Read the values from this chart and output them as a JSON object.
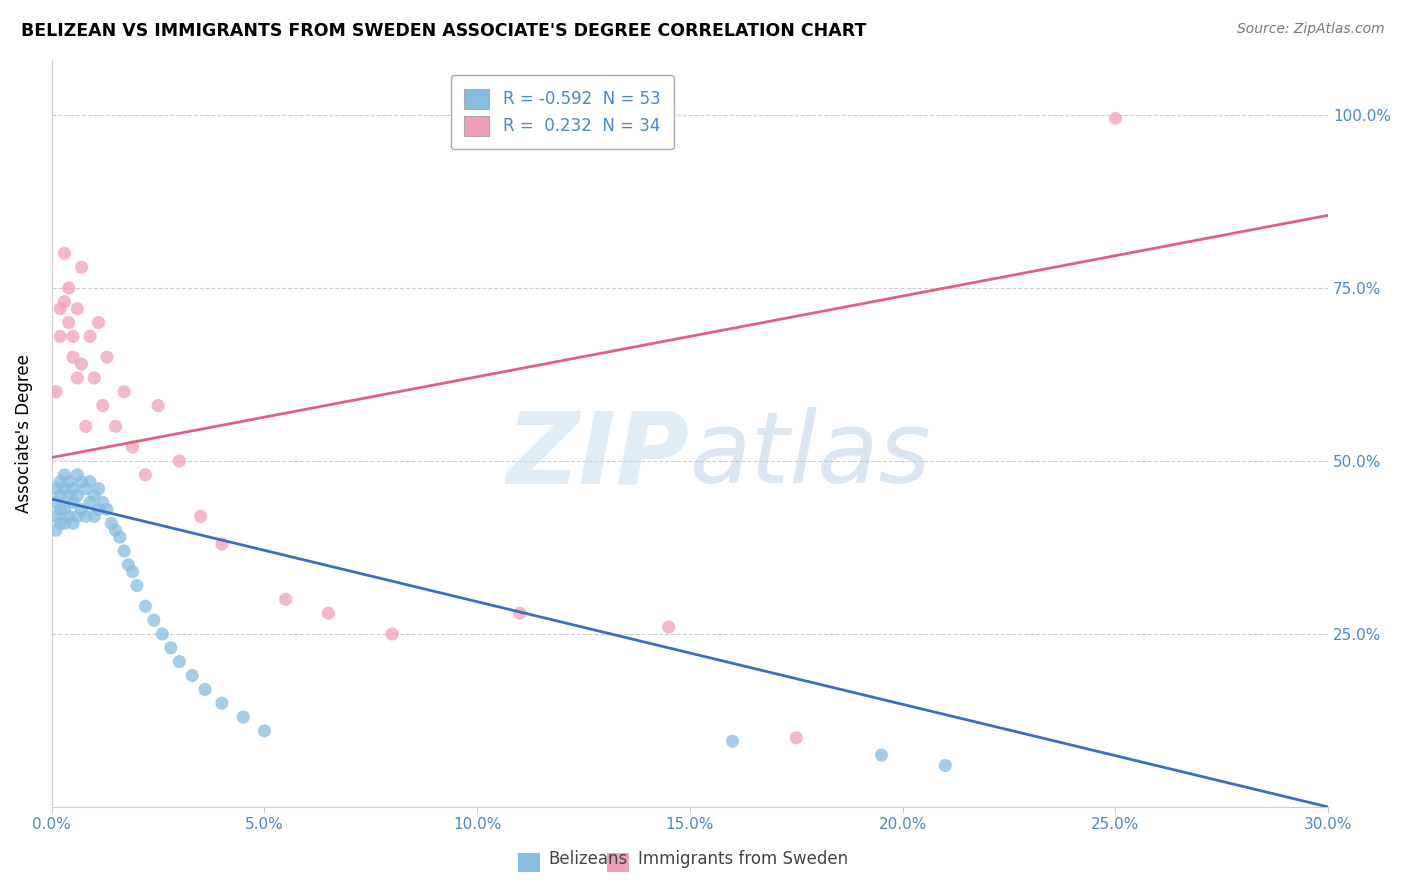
{
  "title": "BELIZEAN VS IMMIGRANTS FROM SWEDEN ASSOCIATE'S DEGREE CORRELATION CHART",
  "source": "Source: ZipAtlas.com",
  "ylabel": "Associate's Degree",
  "ylabel_ticks": [
    "100.0%",
    "75.0%",
    "50.0%",
    "25.0%"
  ],
  "ylabel_tick_vals": [
    1.0,
    0.75,
    0.5,
    0.25
  ],
  "xmin": 0.0,
  "xmax": 0.3,
  "ymin": 0.0,
  "ymax": 1.08,
  "r_belizean": -0.592,
  "n_belizean": 53,
  "r_sweden": 0.232,
  "n_sweden": 34,
  "color_belizean": "#89bde0",
  "color_sweden": "#f0a0b8",
  "color_line_belizean": "#3a6fbe",
  "color_line_sweden": "#e06080",
  "watermark_zip": "ZIP",
  "watermark_atlas": "atlas",
  "legend_label_belizean": "Belizeans",
  "legend_label_sweden": "Immigrants from Sweden",
  "bel_x": [
    0.001,
    0.001,
    0.001,
    0.001,
    0.002,
    0.002,
    0.002,
    0.002,
    0.003,
    0.003,
    0.003,
    0.003,
    0.004,
    0.004,
    0.004,
    0.005,
    0.005,
    0.005,
    0.006,
    0.006,
    0.006,
    0.007,
    0.007,
    0.008,
    0.008,
    0.009,
    0.009,
    0.01,
    0.01,
    0.011,
    0.011,
    0.012,
    0.013,
    0.014,
    0.015,
    0.016,
    0.017,
    0.018,
    0.019,
    0.02,
    0.022,
    0.024,
    0.026,
    0.028,
    0.03,
    0.033,
    0.036,
    0.04,
    0.045,
    0.05,
    0.16,
    0.195,
    0.21
  ],
  "bel_y": [
    0.46,
    0.44,
    0.42,
    0.4,
    0.47,
    0.45,
    0.43,
    0.41,
    0.48,
    0.46,
    0.43,
    0.41,
    0.47,
    0.45,
    0.42,
    0.46,
    0.44,
    0.41,
    0.48,
    0.45,
    0.42,
    0.47,
    0.43,
    0.46,
    0.42,
    0.47,
    0.44,
    0.45,
    0.42,
    0.46,
    0.43,
    0.44,
    0.43,
    0.41,
    0.4,
    0.39,
    0.37,
    0.35,
    0.34,
    0.32,
    0.29,
    0.27,
    0.25,
    0.23,
    0.21,
    0.19,
    0.17,
    0.15,
    0.13,
    0.11,
    0.095,
    0.075,
    0.06
  ],
  "swe_x": [
    0.001,
    0.002,
    0.002,
    0.003,
    0.003,
    0.004,
    0.004,
    0.005,
    0.005,
    0.006,
    0.006,
    0.007,
    0.007,
    0.008,
    0.009,
    0.01,
    0.011,
    0.012,
    0.013,
    0.015,
    0.017,
    0.019,
    0.022,
    0.025,
    0.03,
    0.035,
    0.04,
    0.055,
    0.065,
    0.08,
    0.11,
    0.145,
    0.175,
    0.25
  ],
  "swe_y": [
    0.6,
    0.72,
    0.68,
    0.8,
    0.73,
    0.75,
    0.7,
    0.65,
    0.68,
    0.72,
    0.62,
    0.78,
    0.64,
    0.55,
    0.68,
    0.62,
    0.7,
    0.58,
    0.65,
    0.55,
    0.6,
    0.52,
    0.48,
    0.58,
    0.5,
    0.42,
    0.38,
    0.3,
    0.28,
    0.25,
    0.28,
    0.26,
    0.1,
    0.995
  ],
  "line_bel_x0": 0.0,
  "line_bel_y0": 0.445,
  "line_bel_x1": 0.3,
  "line_bel_y1": 0.0,
  "line_swe_x0": 0.0,
  "line_swe_y0": 0.505,
  "line_swe_x1": 0.3,
  "line_swe_y1": 0.855
}
